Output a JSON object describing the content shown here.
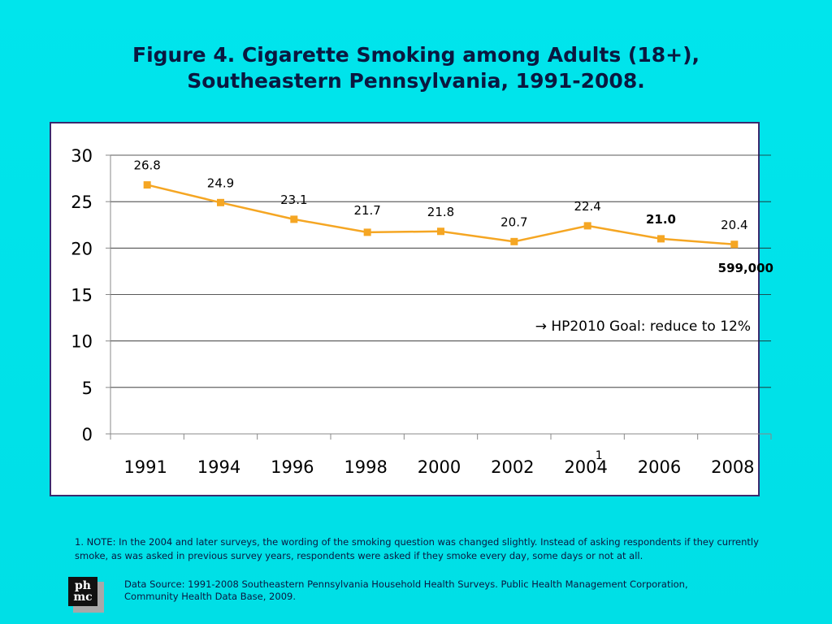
{
  "title_line1": "Figure 4. Cigarette Smoking among Adults (18+),",
  "title_line2": "Southeastern Pennsylvania, 1991-2008.",
  "chart_data": {
    "type": "line",
    "categories": [
      "1991",
      "1994",
      "1996",
      "1998",
      "2000",
      "2002",
      "2004",
      "2006",
      "2008"
    ],
    "values": [
      26.8,
      24.9,
      23.1,
      21.7,
      21.8,
      20.7,
      22.4,
      21.0,
      20.4
    ],
    "data_labels": [
      "26.8",
      "24.9",
      "23.1",
      "21.7",
      "21.8",
      "20.7",
      "22.4",
      "21.0",
      "20.4"
    ],
    "ylim": [
      0,
      30
    ],
    "yticks": [
      0,
      5,
      10,
      15,
      20,
      25,
      30
    ],
    "grid": true,
    "line_color": "#f5a623",
    "footnote_marker": "1",
    "annotations": {
      "count_label": "599,000",
      "goal_text": "→ HP2010 Goal: reduce to 12%"
    }
  },
  "footnote": "1. NOTE: In the 2004 and later surveys, the wording of the smoking question was changed slightly. Instead of asking respondents if they currently smoke, as was asked in previous survey years, respondents were asked if they smoke every day, some days or not at all.",
  "source": "Data Source: 1991-2008 Southeastern Pennsylvania Household Health Surveys. Public Health Management Corporation, Community Health Data Base, 2009.",
  "logo": {
    "icon": "phmc-logo-icon",
    "text": "ph mc"
  }
}
